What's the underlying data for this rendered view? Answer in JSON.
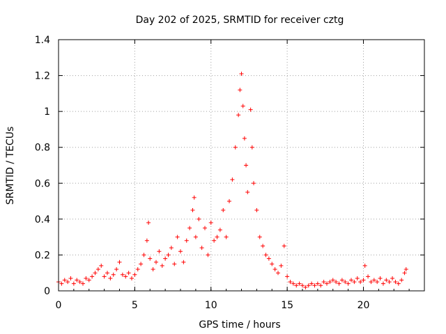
{
  "chart_data": {
    "type": "scatter",
    "title": "Day 202 of 2025, SRMTID for receiver cztg",
    "xlabel": "GPS time / hours",
    "ylabel": "SRMTID / TECUs",
    "xlim": [
      0,
      24
    ],
    "ylim": [
      0,
      1.4
    ],
    "xticks": [
      0,
      5,
      10,
      15,
      20
    ],
    "xtick_labels": [
      "0",
      "5",
      "10",
      "15",
      "20"
    ],
    "yticks": [
      0,
      0.2,
      0.4,
      0.6,
      0.8,
      1.0,
      1.2,
      1.4
    ],
    "ytick_labels": [
      "0",
      "0.2",
      "0.4",
      "0.6",
      "0.8",
      "1",
      "1.2",
      "1.4"
    ],
    "grid": true,
    "marker": "plus",
    "color": "#ff0000",
    "series": [
      {
        "name": "SRMTID",
        "points": [
          [
            0.0,
            0.05
          ],
          [
            0.2,
            0.04
          ],
          [
            0.4,
            0.06
          ],
          [
            0.6,
            0.05
          ],
          [
            0.8,
            0.07
          ],
          [
            1.0,
            0.04
          ],
          [
            1.2,
            0.06
          ],
          [
            1.4,
            0.05
          ],
          [
            1.6,
            0.04
          ],
          [
            1.8,
            0.07
          ],
          [
            2.0,
            0.06
          ],
          [
            2.2,
            0.08
          ],
          [
            2.4,
            0.1
          ],
          [
            2.6,
            0.12
          ],
          [
            2.8,
            0.14
          ],
          [
            3.0,
            0.08
          ],
          [
            3.2,
            0.1
          ],
          [
            3.4,
            0.07
          ],
          [
            3.6,
            0.09
          ],
          [
            3.8,
            0.12
          ],
          [
            4.0,
            0.16
          ],
          [
            4.2,
            0.09
          ],
          [
            4.4,
            0.08
          ],
          [
            4.6,
            0.1
          ],
          [
            4.8,
            0.07
          ],
          [
            5.0,
            0.09
          ],
          [
            5.2,
            0.12
          ],
          [
            5.4,
            0.15
          ],
          [
            5.6,
            0.2
          ],
          [
            5.8,
            0.28
          ],
          [
            5.9,
            0.38
          ],
          [
            6.0,
            0.18
          ],
          [
            6.2,
            0.12
          ],
          [
            6.4,
            0.16
          ],
          [
            6.6,
            0.22
          ],
          [
            6.8,
            0.14
          ],
          [
            7.0,
            0.18
          ],
          [
            7.2,
            0.2
          ],
          [
            7.4,
            0.24
          ],
          [
            7.6,
            0.15
          ],
          [
            7.8,
            0.3
          ],
          [
            8.0,
            0.22
          ],
          [
            8.2,
            0.16
          ],
          [
            8.4,
            0.28
          ],
          [
            8.6,
            0.35
          ],
          [
            8.8,
            0.45
          ],
          [
            8.9,
            0.52
          ],
          [
            9.0,
            0.3
          ],
          [
            9.2,
            0.4
          ],
          [
            9.4,
            0.24
          ],
          [
            9.6,
            0.35
          ],
          [
            9.8,
            0.2
          ],
          [
            10.0,
            0.38
          ],
          [
            10.2,
            0.28
          ],
          [
            10.4,
            0.3
          ],
          [
            10.6,
            0.34
          ],
          [
            10.8,
            0.45
          ],
          [
            11.0,
            0.3
          ],
          [
            11.2,
            0.5
          ],
          [
            11.4,
            0.62
          ],
          [
            11.6,
            0.8
          ],
          [
            11.8,
            0.98
          ],
          [
            11.9,
            1.12
          ],
          [
            12.0,
            1.21
          ],
          [
            12.1,
            1.03
          ],
          [
            12.2,
            0.85
          ],
          [
            12.3,
            0.7
          ],
          [
            12.4,
            0.55
          ],
          [
            12.6,
            1.01
          ],
          [
            12.7,
            0.8
          ],
          [
            12.8,
            0.6
          ],
          [
            13.0,
            0.45
          ],
          [
            13.2,
            0.3
          ],
          [
            13.4,
            0.25
          ],
          [
            13.6,
            0.2
          ],
          [
            13.8,
            0.18
          ],
          [
            14.0,
            0.15
          ],
          [
            14.2,
            0.12
          ],
          [
            14.4,
            0.1
          ],
          [
            14.6,
            0.14
          ],
          [
            14.8,
            0.25
          ],
          [
            15.0,
            0.08
          ],
          [
            15.2,
            0.05
          ],
          [
            15.4,
            0.04
          ],
          [
            15.6,
            0.03
          ],
          [
            15.8,
            0.04
          ],
          [
            16.0,
            0.03
          ],
          [
            16.2,
            0.02
          ],
          [
            16.4,
            0.03
          ],
          [
            16.6,
            0.04
          ],
          [
            16.8,
            0.03
          ],
          [
            17.0,
            0.04
          ],
          [
            17.2,
            0.03
          ],
          [
            17.4,
            0.05
          ],
          [
            17.6,
            0.04
          ],
          [
            17.8,
            0.05
          ],
          [
            18.0,
            0.06
          ],
          [
            18.2,
            0.05
          ],
          [
            18.4,
            0.04
          ],
          [
            18.6,
            0.06
          ],
          [
            18.8,
            0.05
          ],
          [
            19.0,
            0.04
          ],
          [
            19.2,
            0.06
          ],
          [
            19.4,
            0.05
          ],
          [
            19.6,
            0.07
          ],
          [
            19.8,
            0.05
          ],
          [
            20.0,
            0.06
          ],
          [
            20.1,
            0.14
          ],
          [
            20.3,
            0.08
          ],
          [
            20.5,
            0.05
          ],
          [
            20.7,
            0.06
          ],
          [
            20.9,
            0.05
          ],
          [
            21.1,
            0.07
          ],
          [
            21.3,
            0.04
          ],
          [
            21.5,
            0.06
          ],
          [
            21.7,
            0.05
          ],
          [
            21.9,
            0.07
          ],
          [
            22.1,
            0.05
          ],
          [
            22.3,
            0.04
          ],
          [
            22.5,
            0.06
          ],
          [
            22.7,
            0.1
          ],
          [
            22.8,
            0.12
          ]
        ]
      }
    ]
  }
}
